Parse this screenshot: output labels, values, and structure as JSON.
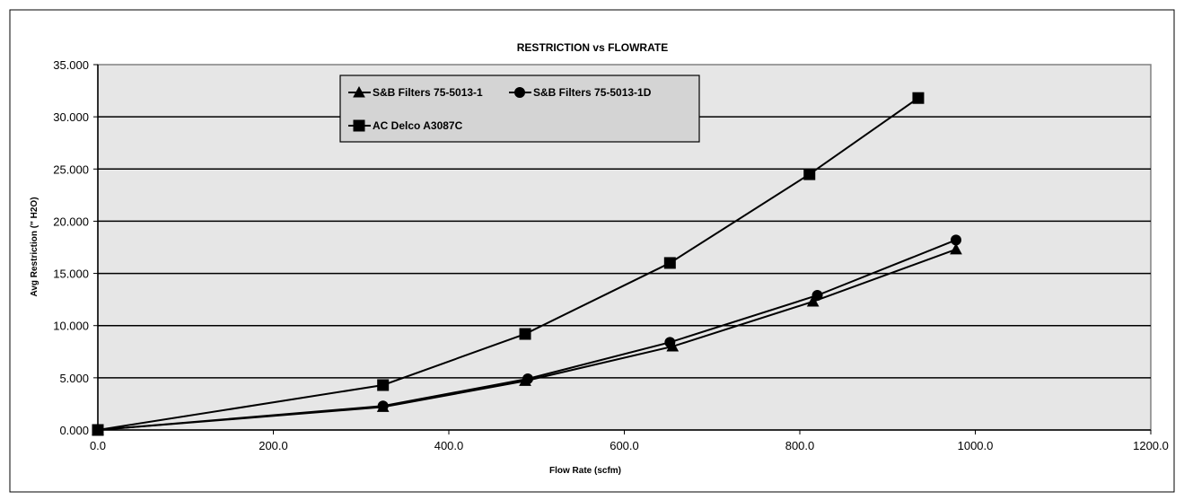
{
  "chart_data": {
    "type": "line",
    "title": "RESTRICTION vs FLOWRATE",
    "xlabel": "Flow Rate (scfm)",
    "ylabel": "Avg Restriction (\" H2O)",
    "xlim": [
      0,
      1200
    ],
    "ylim": [
      0,
      35
    ],
    "x_ticks": [
      "0.0",
      "200.0",
      "400.0",
      "600.0",
      "800.0",
      "1000.0",
      "1200.0"
    ],
    "y_ticks": [
      "0.000",
      "5.000",
      "10.000",
      "15.000",
      "20.000",
      "25.000",
      "30.000",
      "35.000"
    ],
    "grid": "horizontal",
    "legend_position": "top-left",
    "series": [
      {
        "name": "S&B Filters 75-5013-1",
        "marker": "triangle",
        "x": [
          0,
          325,
          487,
          655,
          815,
          978
        ],
        "y": [
          0.0,
          2.2,
          4.7,
          8.0,
          12.3,
          17.3
        ]
      },
      {
        "name": "S&B Filters 75-5013-1D",
        "marker": "circle",
        "x": [
          0,
          325,
          490,
          652,
          820,
          978
        ],
        "y": [
          0.0,
          2.3,
          4.9,
          8.4,
          12.9,
          18.2
        ]
      },
      {
        "name": "AC Delco A3087C",
        "marker": "square",
        "x": [
          0,
          325,
          487,
          652,
          811,
          935
        ],
        "y": [
          0.0,
          4.3,
          9.2,
          16.0,
          24.5,
          31.8
        ]
      }
    ],
    "colors": {
      "plot_background": "#e6e6e6",
      "legend_background": "#d4d4d4",
      "line": "#000000"
    }
  }
}
